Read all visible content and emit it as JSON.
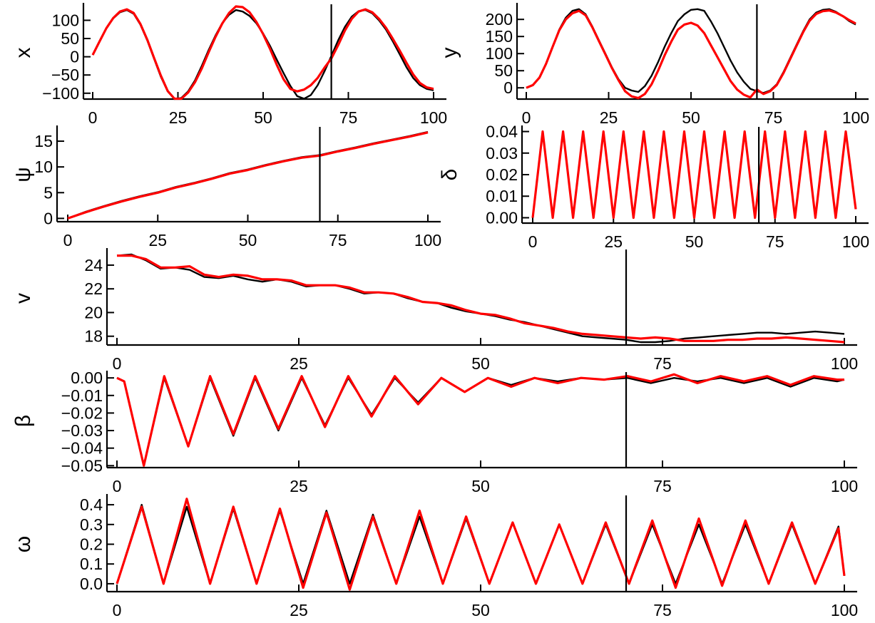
{
  "colors": {
    "measured": "#000000",
    "predicted": "#ff0000"
  },
  "vertical_marker_x": 70,
  "chart_data": [
    {
      "id": "x",
      "type": "line",
      "ylabel": "x",
      "xlim": [
        0,
        100
      ],
      "ylim": [
        -118,
        140
      ],
      "xticks": [
        0,
        25,
        50,
        75,
        100
      ],
      "yticks": [
        -100,
        -50,
        0,
        50,
        100
      ],
      "ytick_labels": [
        "−100",
        "−50",
        "0",
        "50",
        "100"
      ],
      "x": [
        0,
        2,
        4,
        6,
        8,
        10,
        12,
        14,
        16,
        18,
        20,
        22,
        24,
        26,
        28,
        30,
        32,
        34,
        36,
        38,
        40,
        42,
        44,
        46,
        48,
        50,
        52,
        54,
        56,
        58,
        60,
        62,
        64,
        66,
        68,
        70,
        72,
        74,
        76,
        78,
        80,
        82,
        84,
        86,
        88,
        90,
        92,
        94,
        96,
        98,
        100
      ],
      "series": [
        {
          "role": "measured",
          "values": [
            5,
            42,
            78,
            105,
            122,
            128,
            118,
            88,
            45,
            -5,
            -55,
            -95,
            -116,
            -113,
            -95,
            -65,
            -25,
            18,
            58,
            92,
            115,
            128,
            124,
            112,
            92,
            64,
            30,
            -8,
            -45,
            -80,
            -108,
            -115,
            -105,
            -78,
            -40,
            2,
            45,
            82,
            110,
            125,
            128,
            119,
            100,
            75,
            43,
            8,
            -28,
            -58,
            -78,
            -88,
            -92
          ]
        },
        {
          "role": "predicted",
          "values": [
            5,
            42,
            78,
            106,
            124,
            130,
            120,
            90,
            47,
            -3,
            -52,
            -94,
            -115,
            -115,
            -98,
            -70,
            -32,
            12,
            54,
            91,
            120,
            138,
            136,
            122,
            96,
            62,
            22,
            -22,
            -62,
            -88,
            -95,
            -90,
            -78,
            -58,
            -30,
            -5,
            32,
            72,
            104,
            124,
            130,
            122,
            104,
            80,
            50,
            18,
            -16,
            -48,
            -72,
            -84,
            -88
          ]
        }
      ]
    },
    {
      "id": "y",
      "type": "line",
      "ylabel": "y",
      "xlim": [
        0,
        100
      ],
      "ylim": [
        -35,
        240
      ],
      "xticks": [
        0,
        25,
        50,
        75,
        100
      ],
      "yticks": [
        0,
        50,
        100,
        150,
        200
      ],
      "ytick_labels": [
        "0",
        "50",
        "100",
        "150",
        "200"
      ],
      "x": [
        0,
        2,
        4,
        6,
        8,
        10,
        12,
        14,
        16,
        18,
        20,
        22,
        24,
        26,
        28,
        30,
        32,
        34,
        36,
        38,
        40,
        42,
        44,
        46,
        48,
        50,
        52,
        54,
        56,
        58,
        60,
        62,
        64,
        66,
        68,
        70,
        72,
        74,
        76,
        78,
        80,
        82,
        84,
        86,
        88,
        90,
        92,
        94,
        96,
        98,
        100
      ],
      "series": [
        {
          "role": "measured",
          "values": [
            0,
            8,
            30,
            70,
            120,
            170,
            205,
            225,
            230,
            215,
            180,
            140,
            100,
            60,
            25,
            0,
            -8,
            -12,
            5,
            35,
            75,
            120,
            160,
            195,
            215,
            228,
            230,
            225,
            195,
            160,
            120,
            80,
            45,
            18,
            -3,
            -10,
            -15,
            -8,
            10,
            45,
            85,
            125,
            165,
            200,
            220,
            228,
            230,
            222,
            210,
            195,
            185
          ]
        },
        {
          "role": "predicted",
          "values": [
            0,
            8,
            30,
            70,
            120,
            168,
            200,
            218,
            225,
            212,
            178,
            138,
            98,
            58,
            22,
            -10,
            -25,
            -30,
            -18,
            10,
            50,
            95,
            135,
            170,
            185,
            190,
            182,
            160,
            125,
            90,
            55,
            20,
            -5,
            -20,
            -28,
            -5,
            -18,
            -10,
            8,
            42,
            82,
            122,
            162,
            196,
            216,
            224,
            226,
            220,
            210,
            198,
            188
          ]
        }
      ]
    },
    {
      "id": "psi",
      "type": "line",
      "ylabel": "ψ",
      "xlim": [
        0,
        100
      ],
      "ylim": [
        -0.5,
        17.5
      ],
      "xticks": [
        0,
        25,
        50,
        75,
        100
      ],
      "yticks": [
        0,
        5,
        10,
        15
      ],
      "ytick_labels": [
        "0",
        "5",
        "10",
        "15"
      ],
      "x": [
        0,
        5,
        10,
        15,
        20,
        25,
        30,
        35,
        40,
        45,
        50,
        55,
        60,
        65,
        70,
        75,
        80,
        85,
        90,
        95,
        100
      ],
      "series": [
        {
          "role": "measured",
          "values": [
            0,
            1.3,
            2.4,
            3.4,
            4.3,
            5.1,
            6.1,
            6.9,
            7.8,
            8.8,
            9.5,
            10.4,
            11.2,
            11.9,
            12.3,
            13.1,
            13.8,
            14.6,
            15.3,
            16.0,
            16.8
          ]
        },
        {
          "role": "predicted",
          "values": [
            0,
            1.2,
            2.3,
            3.3,
            4.2,
            5.0,
            6.0,
            6.8,
            7.7,
            8.7,
            9.4,
            10.3,
            11.1,
            11.8,
            12.2,
            13.0,
            13.7,
            14.5,
            15.2,
            15.9,
            16.7
          ]
        }
      ]
    },
    {
      "id": "delta",
      "type": "line",
      "ylabel": "δ",
      "xlim": [
        0,
        100
      ],
      "ylim": [
        -0.0015,
        0.0415
      ],
      "xticks": [
        0,
        25,
        50,
        75,
        100
      ],
      "yticks": [
        0,
        0.01,
        0.02,
        0.03,
        0.04
      ],
      "ytick_labels": [
        "0.00",
        "0.01",
        "0.02",
        "0.03",
        "0.04"
      ],
      "x": [
        0,
        3.1,
        6.2,
        9.4,
        12.5,
        15.6,
        18.8,
        21.9,
        25,
        28.1,
        31.2,
        34.4,
        37.5,
        40.6,
        43.8,
        46.9,
        50,
        53.1,
        56.2,
        59.4,
        62.5,
        65.6,
        68.8,
        71.9,
        75,
        78.1,
        81.2,
        84.4,
        87.5,
        90.6,
        93.8,
        96.9,
        100
      ],
      "series": [
        {
          "role": "measured",
          "values": [
            0,
            0.04,
            0,
            0.04,
            0,
            0.04,
            0,
            0.04,
            0,
            0.04,
            0,
            0.04,
            0,
            0.04,
            0,
            0.04,
            0,
            0.04,
            0,
            0.04,
            0,
            0.04,
            0,
            0.04,
            0,
            0.04,
            0,
            0.04,
            0,
            0.04,
            0,
            0.04,
            0.004
          ]
        },
        {
          "role": "predicted",
          "values": [
            0,
            0.04,
            0,
            0.04,
            0,
            0.04,
            0,
            0.04,
            0,
            0.04,
            0,
            0.04,
            0,
            0.04,
            0,
            0.04,
            0,
            0.04,
            0,
            0.04,
            0,
            0.04,
            0,
            0.04,
            0,
            0.04,
            0,
            0.04,
            0,
            0.04,
            0,
            0.04,
            0.004
          ]
        }
      ]
    },
    {
      "id": "v",
      "type": "line",
      "ylabel": "v",
      "xlim": [
        0,
        100
      ],
      "ylim": [
        17.2,
        25.2
      ],
      "xticks": [
        0,
        25,
        50,
        75,
        100
      ],
      "yticks": [
        18,
        20,
        22,
        24
      ],
      "ytick_labels": [
        "18",
        "20",
        "22",
        "24"
      ],
      "x": [
        0,
        2,
        4,
        6,
        8,
        10,
        12,
        14,
        16,
        18,
        20,
        22,
        24,
        26,
        28,
        30,
        32,
        34,
        36,
        38,
        40,
        42,
        44,
        46,
        48,
        50,
        52,
        54,
        56,
        58,
        60,
        62,
        64,
        66,
        68,
        70,
        72,
        74,
        76,
        78,
        80,
        82,
        84,
        86,
        88,
        90,
        92,
        94,
        96,
        98,
        100
      ],
      "series": [
        {
          "role": "measured",
          "values": [
            24.8,
            24.9,
            24.4,
            23.7,
            23.8,
            23.6,
            23.0,
            22.9,
            23.1,
            22.8,
            22.6,
            22.8,
            22.6,
            22.2,
            22.3,
            22.3,
            22.0,
            21.6,
            21.7,
            21.6,
            21.2,
            20.9,
            20.8,
            20.4,
            20.1,
            19.9,
            19.7,
            19.4,
            19.2,
            18.9,
            18.6,
            18.3,
            18.0,
            17.9,
            17.8,
            17.7,
            17.5,
            17.5,
            17.6,
            17.8,
            17.9,
            18.0,
            18.1,
            18.2,
            18.3,
            18.3,
            18.2,
            18.3,
            18.4,
            18.3,
            18.2
          ]
        },
        {
          "role": "predicted",
          "values": [
            24.8,
            24.8,
            24.5,
            23.8,
            23.8,
            23.9,
            23.2,
            23.0,
            23.2,
            23.1,
            22.8,
            22.8,
            22.7,
            22.3,
            22.3,
            22.3,
            22.1,
            21.7,
            21.7,
            21.6,
            21.3,
            20.9,
            20.8,
            20.6,
            20.2,
            19.9,
            19.8,
            19.5,
            19.1,
            18.9,
            18.7,
            18.4,
            18.2,
            18.1,
            18.0,
            17.9,
            17.8,
            17.9,
            17.8,
            17.6,
            17.6,
            17.6,
            17.7,
            17.7,
            17.8,
            17.8,
            17.9,
            17.8,
            17.7,
            17.6,
            17.5
          ]
        }
      ]
    },
    {
      "id": "beta",
      "type": "line",
      "ylabel": "β",
      "xlim": [
        0,
        100
      ],
      "ylim": [
        -0.0515,
        0.0025
      ],
      "xticks": [
        0,
        25,
        50,
        75,
        100
      ],
      "yticks": [
        -0.05,
        -0.04,
        -0.03,
        -0.02,
        -0.01,
        0
      ],
      "ytick_labels": [
        "−0.05",
        "−0.04",
        "−0.03",
        "−0.02",
        "−0.01",
        "0.00"
      ],
      "x": [
        0,
        1,
        3.7,
        6.5,
        9.8,
        12.8,
        16,
        19,
        22.2,
        25.4,
        28.6,
        31.8,
        35,
        38.2,
        41.4,
        44.6,
        47.8,
        51,
        54.2,
        57.4,
        60.6,
        63.8,
        67,
        70.2,
        73.4,
        76.6,
        79.8,
        83,
        86.2,
        89.4,
        92.6,
        95.8,
        99,
        100
      ],
      "series": [
        {
          "role": "measured",
          "values": [
            0,
            -0.002,
            -0.05,
            0,
            -0.039,
            0,
            -0.033,
            0,
            -0.03,
            0,
            -0.027,
            0,
            -0.021,
            0,
            -0.014,
            0,
            -0.008,
            0,
            -0.004,
            0,
            -0.002,
            0,
            -0.001,
            0,
            -0.003,
            0,
            -0.002,
            0,
            -0.003,
            0,
            -0.005,
            0,
            -0.002,
            -0.001
          ]
        },
        {
          "role": "predicted",
          "values": [
            0,
            -0.002,
            -0.05,
            0.001,
            -0.039,
            0.001,
            -0.032,
            0.001,
            -0.029,
            0.001,
            -0.028,
            0.001,
            -0.022,
            0.001,
            -0.015,
            0,
            -0.008,
            0,
            -0.005,
            0,
            -0.003,
            0,
            -0.001,
            0.001,
            -0.002,
            0.002,
            -0.003,
            0.001,
            -0.002,
            0.001,
            -0.004,
            0.001,
            -0.001,
            -0.001
          ]
        }
      ]
    },
    {
      "id": "omega",
      "type": "line",
      "ylabel": "ω",
      "xlim": [
        0,
        100
      ],
      "ylim": [
        -0.04,
        0.44
      ],
      "xticks": [
        0,
        25,
        50,
        75,
        100
      ],
      "yticks": [
        0,
        0.1,
        0.2,
        0.3,
        0.4
      ],
      "ytick_labels": [
        "0.0",
        "0.1",
        "0.2",
        "0.3",
        "0.4"
      ],
      "x": [
        0,
        3.4,
        6.4,
        9.6,
        12.8,
        16,
        19.2,
        22.4,
        25.6,
        28.8,
        32,
        35.2,
        38.4,
        41.6,
        44.8,
        48,
        51.2,
        54.4,
        57.6,
        60.8,
        64,
        67.2,
        70.4,
        73.6,
        76.8,
        80,
        83.2,
        86.4,
        89.6,
        92.8,
        96,
        99.2,
        100
      ],
      "series": [
        {
          "role": "measured",
          "values": [
            0,
            0.4,
            0,
            0.39,
            0,
            0.38,
            0,
            0.37,
            0,
            0.37,
            0,
            0.35,
            0,
            0.34,
            0,
            0.33,
            0,
            0.31,
            0,
            0.3,
            0,
            0.3,
            0,
            0.3,
            0,
            0.3,
            0,
            0.3,
            0,
            0.3,
            0,
            0.29,
            0.04
          ]
        },
        {
          "role": "predicted",
          "values": [
            0,
            0.39,
            0,
            0.43,
            0,
            0.39,
            0,
            0.38,
            -0.02,
            0.36,
            -0.03,
            0.34,
            0,
            0.37,
            0,
            0.34,
            0,
            0.31,
            0,
            0.3,
            0,
            0.31,
            0,
            0.32,
            -0.02,
            0.33,
            -0.01,
            0.32,
            0,
            0.31,
            0,
            0.28,
            0.04
          ]
        }
      ]
    }
  ]
}
